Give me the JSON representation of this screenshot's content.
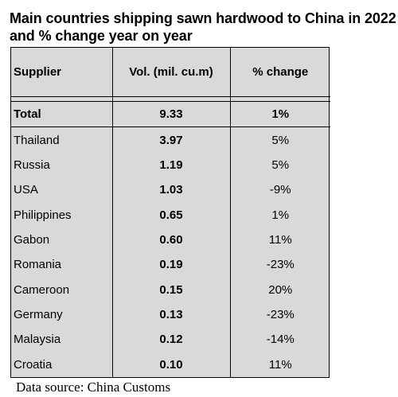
{
  "title": "Main countries shipping sawn hardwood to China in 2022 and % change year on year",
  "source": "Data source: China Customs",
  "chart_data": {
    "type": "table",
    "columns": [
      "Supplier",
      "Vol. (mil. cu.m)",
      "% change"
    ],
    "total": {
      "supplier": "Total",
      "volume": "9.33",
      "change": "1%"
    },
    "rows": [
      {
        "supplier": "Thailand",
        "volume": "3.97",
        "change": "5%"
      },
      {
        "supplier": "Russia",
        "volume": "1.19",
        "change": "5%"
      },
      {
        "supplier": "USA",
        "volume": "1.03",
        "change": "-9%"
      },
      {
        "supplier": "Philippines",
        "volume": "0.65",
        "change": "1%"
      },
      {
        "supplier": "Gabon",
        "volume": "0.60",
        "change": "11%"
      },
      {
        "supplier": "Romania",
        "volume": "0.19",
        "change": "-23%"
      },
      {
        "supplier": "Cameroon",
        "volume": "0.15",
        "change": "20%"
      },
      {
        "supplier": "Germany",
        "volume": "0.13",
        "change": "-23%"
      },
      {
        "supplier": "Malaysia",
        "volume": "0.12",
        "change": "-14%"
      },
      {
        "supplier": "Croatia",
        "volume": "0.10",
        "change": "11%"
      }
    ]
  }
}
